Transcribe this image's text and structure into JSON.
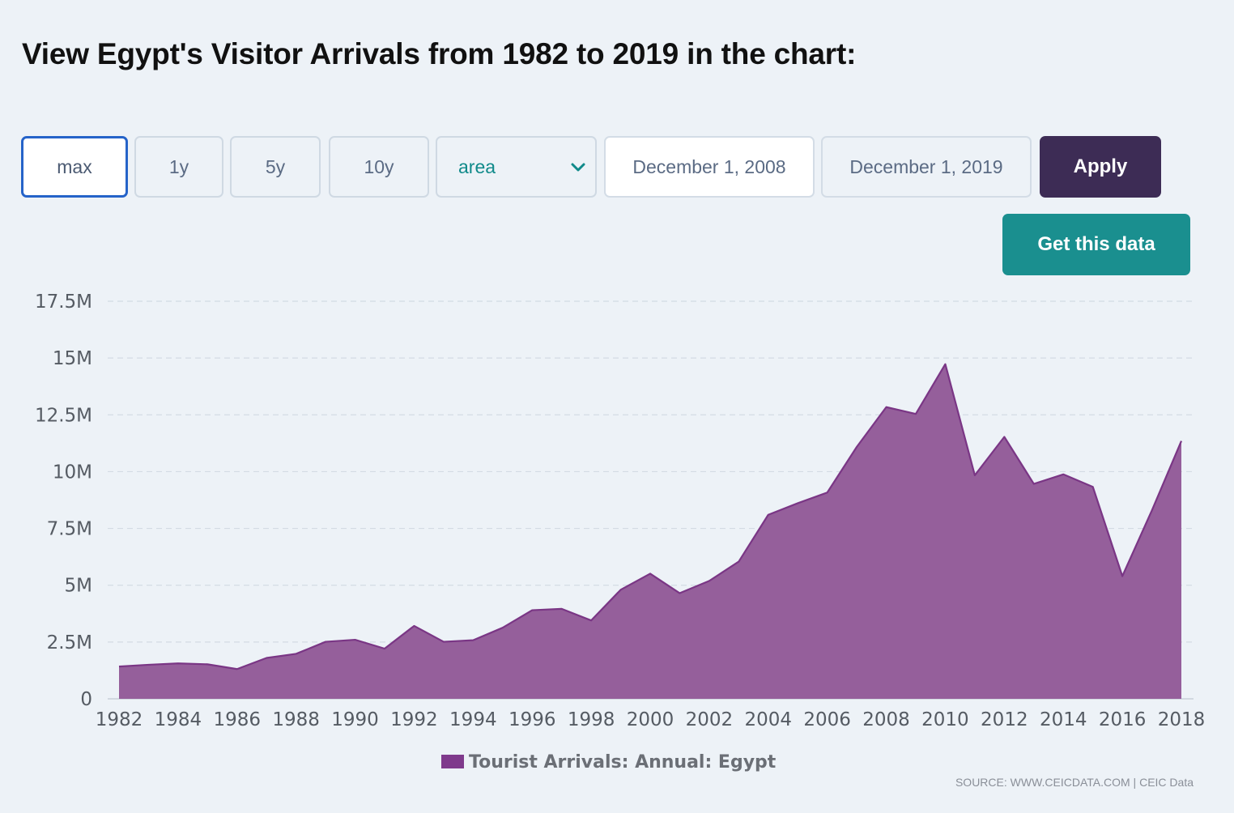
{
  "page": {
    "title": "View Egypt's Visitor Arrivals from 1982 to 2019 in the chart:"
  },
  "controls": {
    "range_buttons": [
      "max",
      "1y",
      "5y",
      "10y"
    ],
    "active_range": "max",
    "chart_type_select": "area",
    "start_date": "December 1, 2008",
    "end_date": "December 1, 2019",
    "apply_label": "Apply",
    "get_data_label": "Get this data"
  },
  "source": "SOURCE: WWW.CEICDATA.COM | CEIC Data",
  "colors": {
    "series_fill": "#955f9b",
    "series_line": "#7a3685",
    "legend_swatch": "#7f3a8c",
    "apply_bg": "#3d2c55",
    "get_data_bg": "#1a8f8f",
    "active_border": "#2563c9"
  },
  "chart_data": {
    "type": "area",
    "title": "",
    "xlabel": "",
    "ylabel": "",
    "x": [
      1982,
      1983,
      1984,
      1985,
      1986,
      1987,
      1988,
      1989,
      1990,
      1991,
      1992,
      1993,
      1994,
      1995,
      1996,
      1997,
      1998,
      1999,
      2000,
      2001,
      2002,
      2003,
      2004,
      2005,
      2006,
      2007,
      2008,
      2009,
      2010,
      2011,
      2012,
      2013,
      2014,
      2015,
      2016,
      2017,
      2018
    ],
    "series": [
      {
        "name": "Tourist Arrivals: Annual: Egypt",
        "values": [
          1420000,
          1500000,
          1560000,
          1520000,
          1310000,
          1800000,
          1980000,
          2510000,
          2600000,
          2210000,
          3210000,
          2510000,
          2580000,
          3130000,
          3900000,
          3960000,
          3450000,
          4800000,
          5510000,
          4650000,
          5190000,
          6040000,
          8100000,
          8610000,
          9080000,
          11090000,
          12840000,
          12540000,
          14730000,
          9840000,
          11530000,
          9460000,
          9880000,
          9330000,
          5400000,
          8290000,
          11350000
        ]
      }
    ],
    "xticks": [
      "1982",
      "1984",
      "1986",
      "1988",
      "1990",
      "1992",
      "1994",
      "1996",
      "1998",
      "2000",
      "2002",
      "2004",
      "2006",
      "2008",
      "2010",
      "2012",
      "2014",
      "2016",
      "2018"
    ],
    "yticks": [
      "0",
      "2.5M",
      "5M",
      "7.5M",
      "10M",
      "12.5M",
      "15M",
      "17.5M"
    ],
    "ylim": [
      0,
      17500000
    ],
    "xlim": [
      1982,
      2018
    ],
    "grid": true,
    "legend": "bottom"
  }
}
